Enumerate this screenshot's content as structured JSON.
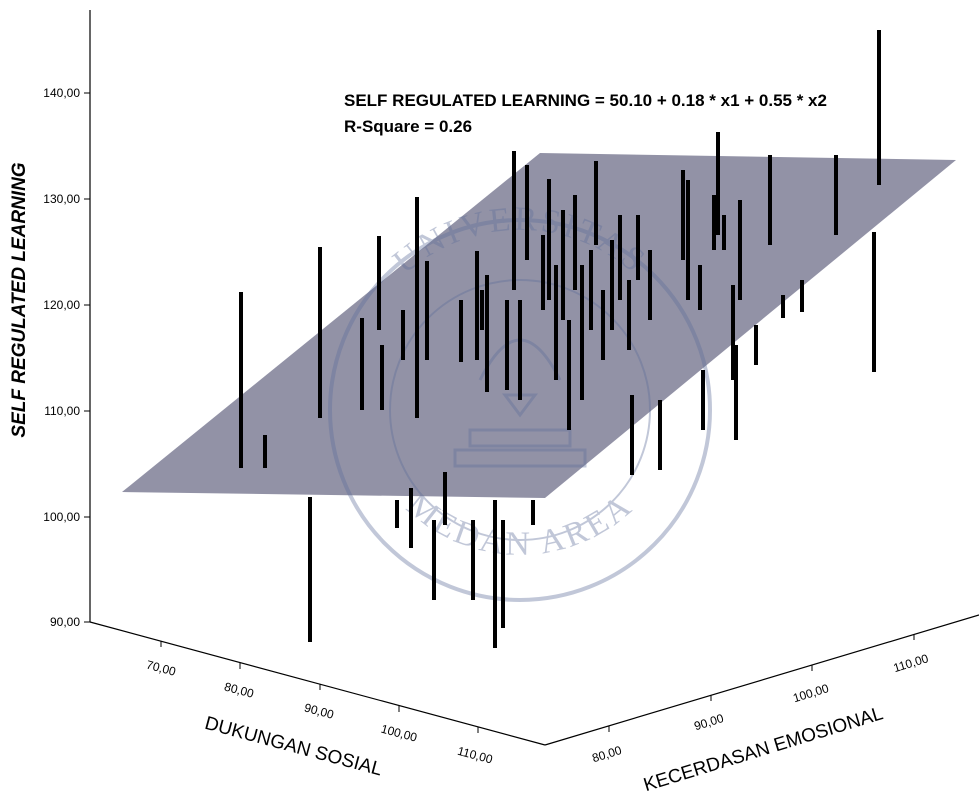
{
  "chart_data": {
    "type": "scatter3d",
    "equation": "SELF REGULATED LEARNING = 50.10 + 0.18 * x1 + 0.55 * x2",
    "r_square": "R-Square = 0.26",
    "ylabel": "SELF REGULATED LEARNING",
    "x1label": "DUKUNGAN SOSIAL",
    "x2label": "KECERDASAN EMOSIONAL",
    "y_ticks": [
      "90,00",
      "100,00",
      "110,00",
      "120,00",
      "130,00",
      "140,00"
    ],
    "x1_ticks": [
      "70,00",
      "80,00",
      "90,00",
      "100,00",
      "110,00"
    ],
    "x2_ticks": [
      "80,00",
      "90,00",
      "100,00",
      "110,00"
    ],
    "ylim": [
      90,
      145
    ],
    "plane": {
      "intercept": 50.1,
      "b1": 0.18,
      "b2": 0.55
    },
    "plane_color": "#7f7f96",
    "watermark": {
      "top": "UNIVERSITAS",
      "bottom": "MEDAN AREA"
    },
    "points_note": "Vertical drop-lines from each observation to the fitted plane; values estimated.",
    "drops": [
      [
        241,
        292,
        468
      ],
      [
        265,
        435,
        468
      ],
      [
        310,
        497,
        642
      ],
      [
        320,
        247,
        418
      ],
      [
        362,
        318,
        410
      ],
      [
        379,
        236,
        330
      ],
      [
        382,
        345,
        410
      ],
      [
        397,
        500,
        528
      ],
      [
        403,
        310,
        360
      ],
      [
        411,
        488,
        548
      ],
      [
        417,
        197,
        418
      ],
      [
        427,
        261,
        360
      ],
      [
        434,
        520,
        600
      ],
      [
        445,
        472,
        525
      ],
      [
        461,
        300,
        362
      ],
      [
        473,
        520,
        600
      ],
      [
        477,
        251,
        360
      ],
      [
        482,
        290,
        330
      ],
      [
        487,
        275,
        392
      ],
      [
        495,
        500,
        648
      ],
      [
        503,
        520,
        628
      ],
      [
        507,
        300,
        390
      ],
      [
        514,
        151,
        290
      ],
      [
        520,
        300,
        400
      ],
      [
        527,
        165,
        260
      ],
      [
        533,
        500,
        525
      ],
      [
        543,
        235,
        310
      ],
      [
        549,
        179,
        300
      ],
      [
        556,
        265,
        380
      ],
      [
        563,
        210,
        320
      ],
      [
        569,
        320,
        430
      ],
      [
        575,
        195,
        290
      ],
      [
        582,
        265,
        400
      ],
      [
        591,
        250,
        330
      ],
      [
        596,
        161,
        245
      ],
      [
        603,
        290,
        360
      ],
      [
        612,
        240,
        330
      ],
      [
        620,
        215,
        300
      ],
      [
        629,
        280,
        350
      ],
      [
        632,
        395,
        475
      ],
      [
        638,
        215,
        280
      ],
      [
        650,
        250,
        320
      ],
      [
        660,
        400,
        470
      ],
      [
        683,
        170,
        260
      ],
      [
        688,
        180,
        300
      ],
      [
        700,
        265,
        310
      ],
      [
        703,
        370,
        430
      ],
      [
        714,
        195,
        250
      ],
      [
        718,
        132,
        235
      ],
      [
        724,
        215,
        250
      ],
      [
        733,
        285,
        380
      ],
      [
        736,
        345,
        440
      ],
      [
        740,
        200,
        300
      ],
      [
        756,
        325,
        365
      ],
      [
        770,
        155,
        245
      ],
      [
        783,
        295,
        318
      ],
      [
        802,
        280,
        312
      ],
      [
        836,
        155,
        235
      ],
      [
        874,
        232,
        372
      ],
      [
        879,
        30,
        185
      ]
    ]
  }
}
